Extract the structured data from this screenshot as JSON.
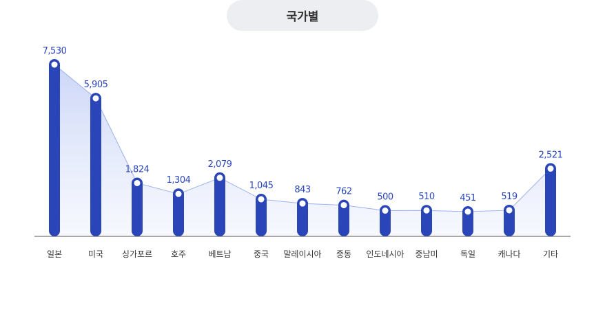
{
  "chart_data": {
    "type": "bar",
    "title": "국가별",
    "categories": [
      "일본",
      "미국",
      "싱가포르",
      "호주",
      "베트남",
      "중국",
      "말레이시아",
      "중동",
      "인도네시아",
      "중남미",
      "독일",
      "캐나다",
      "기타"
    ],
    "values": [
      7530,
      5905,
      1824,
      1304,
      2079,
      1045,
      843,
      762,
      500,
      510,
      451,
      519,
      2521
    ],
    "value_labels": [
      "7,530",
      "5,905",
      "1,824",
      "1,304",
      "2,079",
      "1,045",
      "843",
      "762",
      "500",
      "510",
      "451",
      "519",
      "2,521"
    ],
    "overlay": "area-line through bar tops",
    "colors": {
      "bar": "#2a45b8",
      "line": "#9cb2ee",
      "area": "#dbe3fb",
      "axis": "#555555"
    },
    "grid": false,
    "legend": "none"
  }
}
